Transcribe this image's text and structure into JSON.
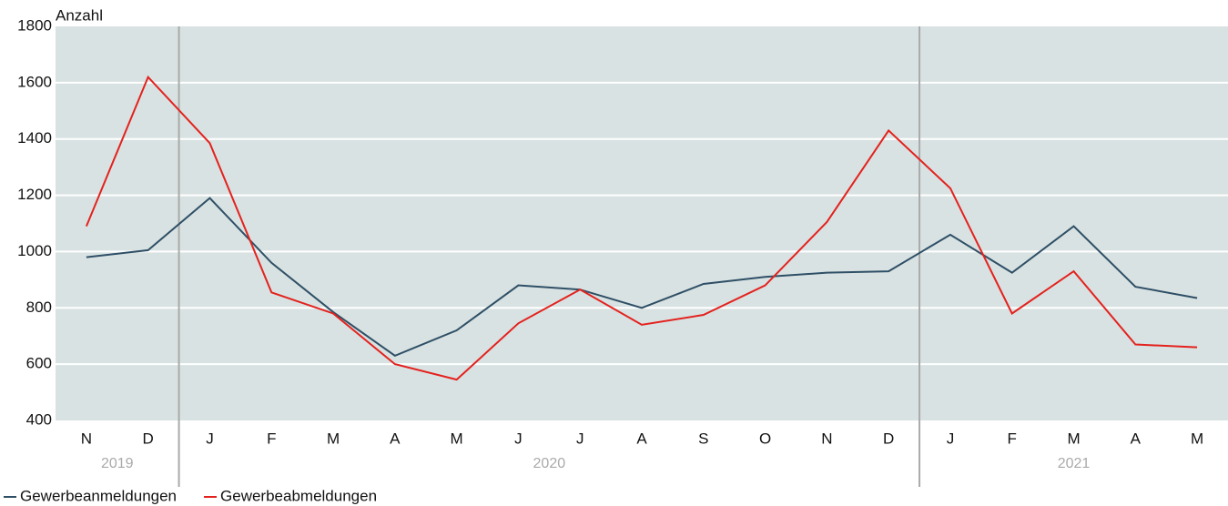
{
  "chart_data": {
    "type": "line",
    "y_label": "Anzahl",
    "categories": [
      "N",
      "D",
      "J",
      "F",
      "M",
      "A",
      "M",
      "J",
      "J",
      "A",
      "S",
      "O",
      "N",
      "D",
      "J",
      "F",
      "M",
      "A",
      "M"
    ],
    "groups": [
      {
        "label": "2019",
        "count": 2
      },
      {
        "label": "2020",
        "count": 12
      },
      {
        "label": "2021",
        "count": 5
      }
    ],
    "series": [
      {
        "name": "Gewerbeanmeldungen",
        "color": "#2e4f66",
        "values": [
          980,
          1005,
          1190,
          960,
          785,
          630,
          720,
          880,
          865,
          800,
          885,
          910,
          925,
          930,
          1060,
          925,
          1090,
          875,
          835
        ]
      },
      {
        "name": "Gewerbeabmeldungen",
        "color": "#e3221e",
        "values": [
          1090,
          1620,
          1385,
          855,
          780,
          600,
          545,
          745,
          865,
          740,
          775,
          880,
          1105,
          1430,
          1225,
          780,
          930,
          670,
          660
        ]
      }
    ],
    "ylim": [
      400,
      1800
    ],
    "yticks": [
      400,
      600,
      800,
      1000,
      1200,
      1400,
      1600,
      1800
    ],
    "grid": true,
    "legend": "bottom-left"
  }
}
